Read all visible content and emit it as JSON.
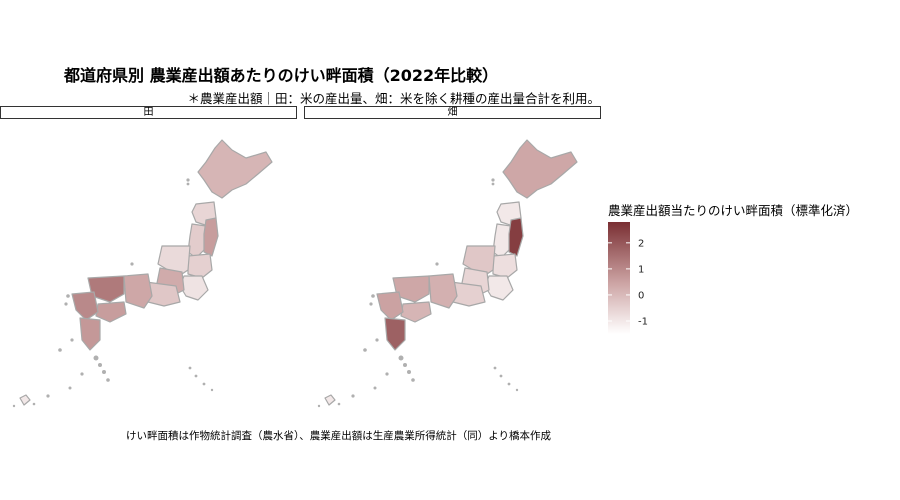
{
  "chart_data": {
    "type": "choropleth",
    "title": "都道府県別 農業産出額あたりのけい畔面積（2022年比較）",
    "subtitle": "＊農業産出額｜田：米の産出量、畑：米を除く耕種の産出量合計を利用。",
    "caption": "けい畔面積は作物統計調査（農水省）、農業産出額は生産農業所得統計（同）より橋本作成",
    "facets": [
      "田",
      "畑"
    ],
    "legend": {
      "title": "農業産出額当たりのけい畔面積（標準化済）",
      "ticks": [
        2,
        1,
        0,
        -1
      ],
      "range": [
        -1.5,
        2.8
      ],
      "color_low": "#ffffff",
      "color_high": "#7a2f33",
      "position": "right"
    },
    "regions": {
      "田": {
        "hokkaido": 0.1,
        "tohoku_north": -0.6,
        "tohoku_west": -0.4,
        "tohoku_east": 0.6,
        "tohoku_south": -0.5,
        "kanto": -0.9,
        "chubu_north": -0.7,
        "chubu_central": 0.3,
        "tokai": -0.3,
        "kinki": 0.4,
        "chugoku": 1.3,
        "shikoku": 0.6,
        "kyushu_north": 1.0,
        "kyushu_south": 0.7,
        "okinawa": -1.0
      },
      "畑": {
        "hokkaido": 0.4,
        "tohoku_north": -1.0,
        "tohoku_west": -1.0,
        "tohoku_east": 2.5,
        "tohoku_south": -0.8,
        "kanto": -1.0,
        "chubu_north": -0.3,
        "chubu_central": -0.6,
        "tokai": -0.5,
        "kinki": 0.2,
        "chugoku": 0.4,
        "shikoku": 0.1,
        "kyushu_north": 0.5,
        "kyushu_south": 1.8,
        "okinawa": -1.0
      }
    }
  }
}
